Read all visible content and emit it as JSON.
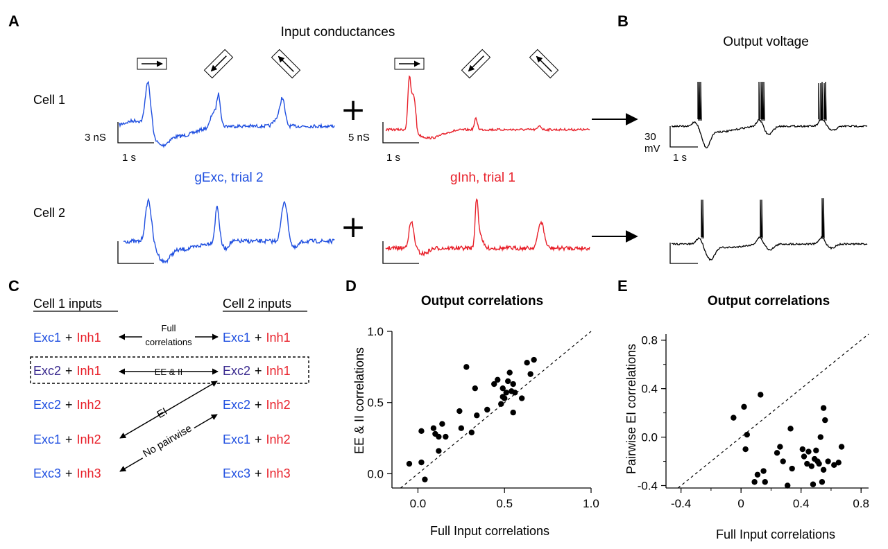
{
  "panels": {
    "A": {
      "label": "A",
      "title": "Input conductances",
      "cell1": "Cell 1",
      "cell2": "Cell 2",
      "plus": "+",
      "exc_caption": "gExc, trial 2",
      "inh_caption": "gInh, trial 1",
      "exc_scale_y": "3 nS",
      "inh_scale_y": "5 nS",
      "scale_x": "1 s",
      "colors": {
        "exc": "#1f4fe0",
        "inh": "#e8202a",
        "output": "#000000"
      }
    },
    "B": {
      "label": "B",
      "title": "Output voltage",
      "scale_y_line1": "30",
      "scale_y_line2": "mV",
      "scale_x": "1 s"
    },
    "C": {
      "label": "C",
      "cell1_header": "Cell 1 inputs",
      "cell2_header": "Cell 2 inputs",
      "plus": "+",
      "rows": [
        {
          "left_exc": "Exc1",
          "left_inh": "Inh1",
          "right_exc": "Exc1",
          "right_inh": "Inh1"
        },
        {
          "left_exc": "Exc2",
          "left_inh": "Inh1",
          "right_exc": "Exc2",
          "right_inh": "Inh1"
        },
        {
          "left_exc": "Exc2",
          "left_inh": "Inh2",
          "right_exc": "Exc2",
          "right_inh": "Inh2"
        },
        {
          "left_exc": "Exc1",
          "left_inh": "Inh2",
          "right_exc": "Exc1",
          "right_inh": "Inh2"
        },
        {
          "left_exc": "Exc3",
          "left_inh": "Inh3",
          "right_exc": "Exc3",
          "right_inh": "Inh3"
        }
      ],
      "arrow_full_line1": "Full",
      "arrow_full_line2": "correlations",
      "arrow_eeii": "EE & II",
      "arrow_ei": "EI",
      "arrow_nopair": "No pairwise"
    }
  },
  "chart_data": [
    {
      "panel_label": "D",
      "type": "scatter",
      "title": "Output correlations",
      "xlabel": "Full Input correlations",
      "ylabel": "EE & II correlations",
      "xlim": [
        -0.15,
        1.0
      ],
      "ylim": [
        -0.1,
        1.0
      ],
      "xticks": [
        0.0,
        0.5,
        1.0
      ],
      "xtick_labels": [
        "0.0",
        "0.5",
        "1.0"
      ],
      "yticks": [
        0.0,
        0.5,
        1.0
      ],
      "ytick_labels": [
        "0.0",
        "0.5",
        "1.0"
      ],
      "identity_line": true,
      "points": [
        [
          -0.05,
          0.07
        ],
        [
          0.02,
          0.08
        ],
        [
          0.04,
          -0.04
        ],
        [
          0.02,
          0.3
        ],
        [
          0.09,
          0.32
        ],
        [
          0.1,
          0.28
        ],
        [
          0.12,
          0.26
        ],
        [
          0.12,
          0.16
        ],
        [
          0.14,
          0.35
        ],
        [
          0.16,
          0.26
        ],
        [
          0.24,
          0.44
        ],
        [
          0.25,
          0.32
        ],
        [
          0.28,
          0.75
        ],
        [
          0.31,
          0.29
        ],
        [
          0.33,
          0.6
        ],
        [
          0.34,
          0.41
        ],
        [
          0.4,
          0.45
        ],
        [
          0.44,
          0.63
        ],
        [
          0.46,
          0.66
        ],
        [
          0.48,
          0.49
        ],
        [
          0.49,
          0.6
        ],
        [
          0.49,
          0.54
        ],
        [
          0.5,
          0.53
        ],
        [
          0.51,
          0.57
        ],
        [
          0.52,
          0.65
        ],
        [
          0.53,
          0.71
        ],
        [
          0.54,
          0.58
        ],
        [
          0.55,
          0.63
        ],
        [
          0.55,
          0.43
        ],
        [
          0.56,
          0.57
        ],
        [
          0.6,
          0.53
        ],
        [
          0.63,
          0.78
        ],
        [
          0.65,
          0.7
        ],
        [
          0.67,
          0.8
        ]
      ]
    },
    {
      "panel_label": "E",
      "type": "scatter",
      "title": "Output correlations",
      "xlabel": "Full Input correlations",
      "ylabel": "Pairwise EI correlations",
      "xlim": [
        -0.5,
        0.85
      ],
      "ylim": [
        -0.42,
        0.85
      ],
      "xticks": [
        -0.4,
        0.0,
        0.4,
        0.8
      ],
      "xtick_labels": [
        "-0.4",
        "0",
        "0.4",
        "0.8"
      ],
      "yticks": [
        -0.4,
        0.0,
        0.4,
        0.8
      ],
      "ytick_labels": [
        "-0.4",
        "0.0",
        "0.4",
        "0.8"
      ],
      "identity_line": true,
      "points": [
        [
          -0.05,
          0.16
        ],
        [
          0.02,
          0.25
        ],
        [
          0.03,
          -0.1
        ],
        [
          0.04,
          0.02
        ],
        [
          0.09,
          -0.37
        ],
        [
          0.11,
          -0.31
        ],
        [
          0.13,
          0.35
        ],
        [
          0.15,
          -0.28
        ],
        [
          0.16,
          -0.37
        ],
        [
          0.24,
          -0.13
        ],
        [
          0.26,
          -0.08
        ],
        [
          0.28,
          -0.2
        ],
        [
          0.31,
          -0.4
        ],
        [
          0.33,
          0.07
        ],
        [
          0.34,
          -0.26
        ],
        [
          0.41,
          -0.1
        ],
        [
          0.42,
          -0.16
        ],
        [
          0.44,
          -0.22
        ],
        [
          0.45,
          -0.12
        ],
        [
          0.47,
          -0.24
        ],
        [
          0.48,
          -0.39
        ],
        [
          0.49,
          -0.18
        ],
        [
          0.5,
          -0.11
        ],
        [
          0.51,
          -0.2
        ],
        [
          0.52,
          -0.22
        ],
        [
          0.53,
          0.0
        ],
        [
          0.54,
          -0.37
        ],
        [
          0.55,
          -0.27
        ],
        [
          0.55,
          0.24
        ],
        [
          0.56,
          0.14
        ],
        [
          0.58,
          -0.2
        ],
        [
          0.62,
          -0.23
        ],
        [
          0.65,
          -0.21
        ],
        [
          0.67,
          -0.08
        ]
      ]
    }
  ]
}
